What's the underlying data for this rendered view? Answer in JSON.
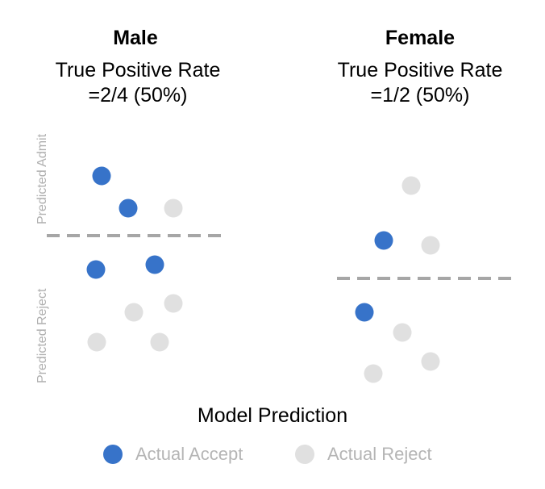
{
  "colors": {
    "accept": "#3773c9",
    "reject": "#e0e0e0",
    "threshold": "#a6a6a6"
  },
  "groups": [
    {
      "title": "Male",
      "metric_line1": "True Positive Rate",
      "metric_line2": "=2/4 (50%)",
      "points": [
        {
          "label": "Actual Accept",
          "prediction": "Predicted Admit"
        },
        {
          "label": "Actual Accept",
          "prediction": "Predicted Admit"
        },
        {
          "label": "Actual Reject",
          "prediction": "Predicted Admit"
        },
        {
          "label": "Actual Accept",
          "prediction": "Predicted Reject"
        },
        {
          "label": "Actual Accept",
          "prediction": "Predicted Reject"
        },
        {
          "label": "Actual Reject",
          "prediction": "Predicted Reject"
        },
        {
          "label": "Actual Reject",
          "prediction": "Predicted Reject"
        },
        {
          "label": "Actual Reject",
          "prediction": "Predicted Reject"
        },
        {
          "label": "Actual Reject",
          "prediction": "Predicted Reject"
        }
      ]
    },
    {
      "title": "Female",
      "metric_line1": "True Positive Rate",
      "metric_line2": "=1/2 (50%)",
      "points": [
        {
          "label": "Actual Reject",
          "prediction": "Predicted Admit"
        },
        {
          "label": "Actual Accept",
          "prediction": "Predicted Admit"
        },
        {
          "label": "Actual Reject",
          "prediction": "Predicted Admit"
        },
        {
          "label": "Actual Accept",
          "prediction": "Predicted Reject"
        },
        {
          "label": "Actual Reject",
          "prediction": "Predicted Reject"
        },
        {
          "label": "Actual Reject",
          "prediction": "Predicted Reject"
        },
        {
          "label": "Actual Reject",
          "prediction": "Predicted Reject"
        }
      ]
    }
  ],
  "axis": {
    "top_label": "Predicted Admit",
    "bottom_label": "Predicted Reject"
  },
  "x_title": "Model Prediction",
  "legend": [
    {
      "label": "Actual Accept",
      "color": "#3773c9"
    },
    {
      "label": "Actual Reject",
      "color": "#e0e0e0"
    }
  ]
}
